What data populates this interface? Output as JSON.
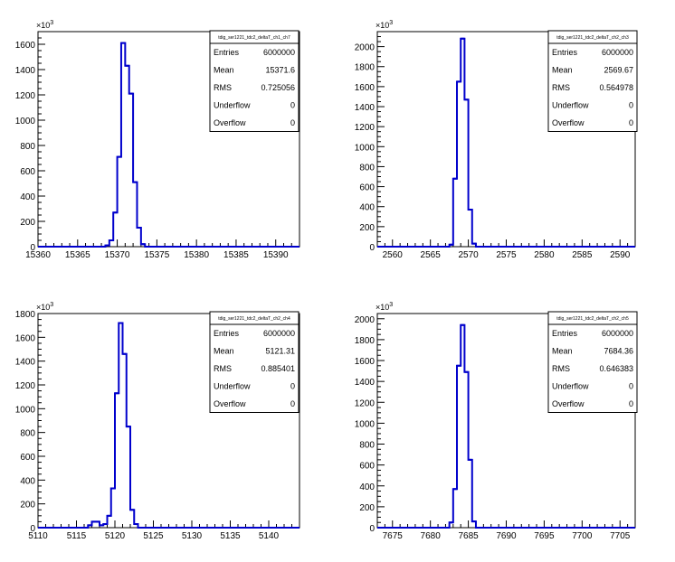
{
  "chart_data": [
    {
      "type": "histogram",
      "title": "tdig_ser1221_tdc2_deltaT_ch1_ch7",
      "xlim": [
        15360,
        15393
      ],
      "ylim": [
        0,
        1.7
      ],
      "y_multiplier": "x10^3",
      "xticks": [
        15360,
        15365,
        15370,
        15375,
        15380,
        15385,
        15390
      ],
      "yticks": [
        0,
        0.2,
        0.4,
        0.6,
        0.8,
        1.0,
        1.2,
        1.4,
        1.6
      ],
      "ytick_labels": [
        "0",
        "200",
        "400",
        "600",
        "800",
        "1000",
        "1200",
        "1400",
        "1600"
      ],
      "exp_base": "10",
      "exp_power": "3",
      "bin_width": 0.5,
      "bins": [
        {
          "x": 15368.5,
          "y": 0.01
        },
        {
          "x": 15369.0,
          "y": 0.05
        },
        {
          "x": 15369.5,
          "y": 0.27
        },
        {
          "x": 15370.0,
          "y": 0.71
        },
        {
          "x": 15370.5,
          "y": 1.61
        },
        {
          "x": 15371.0,
          "y": 1.43
        },
        {
          "x": 15371.5,
          "y": 1.21
        },
        {
          "x": 15372.0,
          "y": 0.51
        },
        {
          "x": 15372.5,
          "y": 0.15
        },
        {
          "x": 15373.0,
          "y": 0.02
        }
      ],
      "stats": [
        {
          "label": "Entries",
          "value": "6000000"
        },
        {
          "label": "Mean",
          "value": "15371.6"
        },
        {
          "label": "RMS",
          "value": "0.725056"
        },
        {
          "label": "Underflow",
          "value": "0"
        },
        {
          "label": "Overflow",
          "value": "0"
        }
      ]
    },
    {
      "type": "histogram",
      "title": "tdig_ser1221_tdc2_deltaT_ch2_ch3",
      "xlim": [
        2558,
        2592
      ],
      "ylim": [
        0,
        2.15
      ],
      "y_multiplier": "x10^3",
      "xticks": [
        2560,
        2565,
        2570,
        2575,
        2580,
        2585,
        2590
      ],
      "yticks": [
        0,
        0.2,
        0.4,
        0.6,
        0.8,
        1.0,
        1.2,
        1.4,
        1.6,
        1.8,
        2.0
      ],
      "ytick_labels": [
        "0",
        "200",
        "400",
        "600",
        "800",
        "1000",
        "1200",
        "1400",
        "1600",
        "1800",
        "2000"
      ],
      "exp_base": "10",
      "exp_power": "3",
      "bin_width": 0.5,
      "bins": [
        {
          "x": 2567.5,
          "y": 0.02
        },
        {
          "x": 2568.0,
          "y": 0.68
        },
        {
          "x": 2568.5,
          "y": 1.65
        },
        {
          "x": 2569.0,
          "y": 2.08
        },
        {
          "x": 2569.5,
          "y": 1.47
        },
        {
          "x": 2570.0,
          "y": 0.37
        },
        {
          "x": 2570.5,
          "y": 0.03
        }
      ],
      "stats": [
        {
          "label": "Entries",
          "value": "6000000"
        },
        {
          "label": "Mean",
          "value": "2569.67"
        },
        {
          "label": "RMS",
          "value": "0.564978"
        },
        {
          "label": "Underflow",
          "value": "0"
        },
        {
          "label": "Overflow",
          "value": "0"
        }
      ]
    },
    {
      "type": "histogram",
      "title": "tdig_ser1221_tdc2_deltaT_ch2_ch4",
      "xlim": [
        5110,
        5144
      ],
      "ylim": [
        0,
        1.8
      ],
      "y_multiplier": "x10^3",
      "xticks": [
        5110,
        5115,
        5120,
        5125,
        5130,
        5135,
        5140
      ],
      "yticks": [
        0,
        0.2,
        0.4,
        0.6,
        0.8,
        1.0,
        1.2,
        1.4,
        1.6,
        1.8
      ],
      "ytick_labels": [
        "0",
        "200",
        "400",
        "600",
        "800",
        "1000",
        "1200",
        "1400",
        "1600",
        "1800"
      ],
      "exp_base": "10",
      "exp_power": "3",
      "bin_width": 0.5,
      "bins": [
        {
          "x": 5116.5,
          "y": 0.02
        },
        {
          "x": 5117.0,
          "y": 0.05
        },
        {
          "x": 5117.5,
          "y": 0.05
        },
        {
          "x": 5118.0,
          "y": 0.02
        },
        {
          "x": 5118.5,
          "y": 0.03
        },
        {
          "x": 5119.0,
          "y": 0.1
        },
        {
          "x": 5119.5,
          "y": 0.33
        },
        {
          "x": 5120.0,
          "y": 1.13
        },
        {
          "x": 5120.5,
          "y": 1.72
        },
        {
          "x": 5121.0,
          "y": 1.46
        },
        {
          "x": 5121.5,
          "y": 0.85
        },
        {
          "x": 5122.0,
          "y": 0.15
        },
        {
          "x": 5122.5,
          "y": 0.03
        }
      ],
      "stats": [
        {
          "label": "Entries",
          "value": "6000000"
        },
        {
          "label": "Mean",
          "value": "5121.31"
        },
        {
          "label": "RMS",
          "value": "0.885401"
        },
        {
          "label": "Underflow",
          "value": "0"
        },
        {
          "label": "Overflow",
          "value": "0"
        }
      ]
    },
    {
      "type": "histogram",
      "title": "tdig_ser1221_tdc2_deltaT_ch2_ch5",
      "xlim": [
        7673,
        7707
      ],
      "ylim": [
        0,
        2.05
      ],
      "y_multiplier": "x10^3",
      "xticks": [
        7675,
        7680,
        7685,
        7690,
        7695,
        7700,
        7705
      ],
      "yticks": [
        0,
        0.2,
        0.4,
        0.6,
        0.8,
        1.0,
        1.2,
        1.4,
        1.6,
        1.8,
        2.0
      ],
      "ytick_labels": [
        "0",
        "200",
        "400",
        "600",
        "800",
        "1000",
        "1200",
        "1400",
        "1600",
        "1800",
        "2000"
      ],
      "exp_base": "10",
      "exp_power": "3",
      "bin_width": 0.5,
      "bins": [
        {
          "x": 7682.5,
          "y": 0.05
        },
        {
          "x": 7683.0,
          "y": 0.37
        },
        {
          "x": 7683.5,
          "y": 1.55
        },
        {
          "x": 7684.0,
          "y": 1.94
        },
        {
          "x": 7684.5,
          "y": 1.49
        },
        {
          "x": 7685.0,
          "y": 0.65
        },
        {
          "x": 7685.5,
          "y": 0.06
        }
      ],
      "stats": [
        {
          "label": "Entries",
          "value": "6000000"
        },
        {
          "label": "Mean",
          "value": "7684.36"
        },
        {
          "label": "RMS",
          "value": "0.646383"
        },
        {
          "label": "Underflow",
          "value": "0"
        },
        {
          "label": "Overflow",
          "value": "0"
        }
      ]
    }
  ],
  "colors": {
    "histogram_line": "#0000cc",
    "axis": "#000000",
    "background": "#ffffff"
  }
}
